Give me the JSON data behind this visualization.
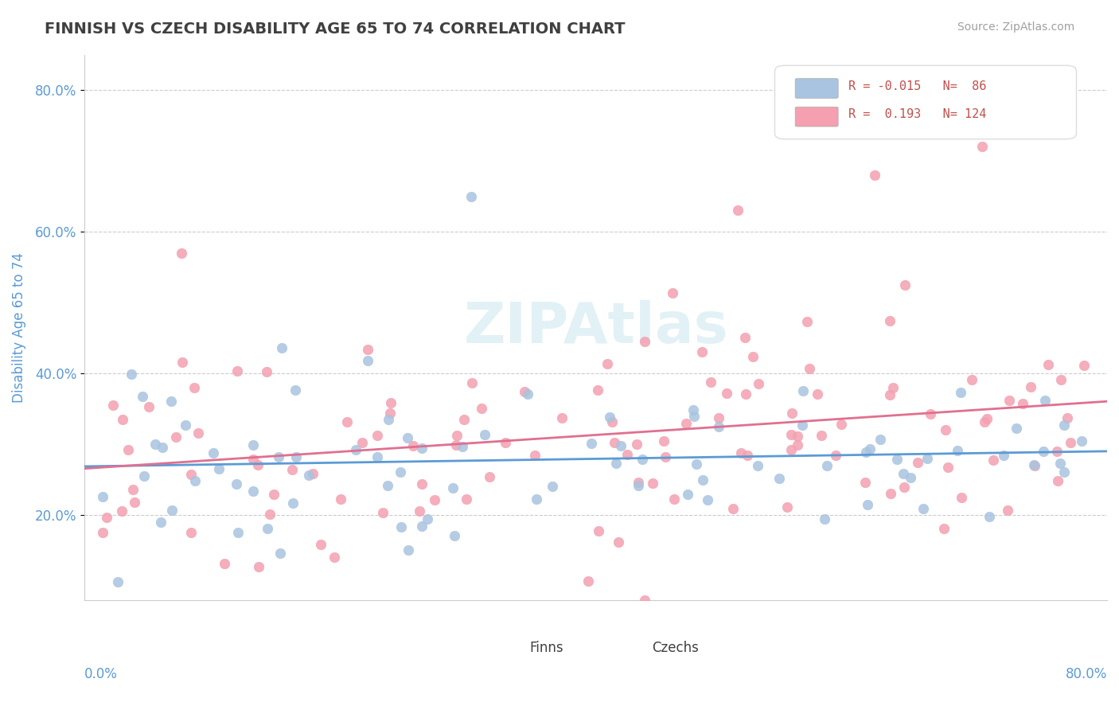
{
  "title": "FINNISH VS CZECH DISABILITY AGE 65 TO 74 CORRELATION CHART",
  "source": "Source: ZipAtlas.com",
  "ylabel": "Disability Age 65 to 74",
  "xlim": [
    0.0,
    0.8
  ],
  "ylim": [
    0.08,
    0.85
  ],
  "yticks": [
    0.2,
    0.4,
    0.6,
    0.8
  ],
  "ytick_labels": [
    "20.0%",
    "40.0%",
    "60.0%",
    "80.0%"
  ],
  "finn_R": -0.015,
  "finn_N": 86,
  "czech_R": 0.193,
  "czech_N": 124,
  "finn_color": "#a8c4e0",
  "czech_color": "#f4a0b0",
  "finn_line_color": "#5b9bd5",
  "czech_line_color": "#e07090",
  "background_color": "#ffffff",
  "axis_label_color": "#5b9bd5"
}
